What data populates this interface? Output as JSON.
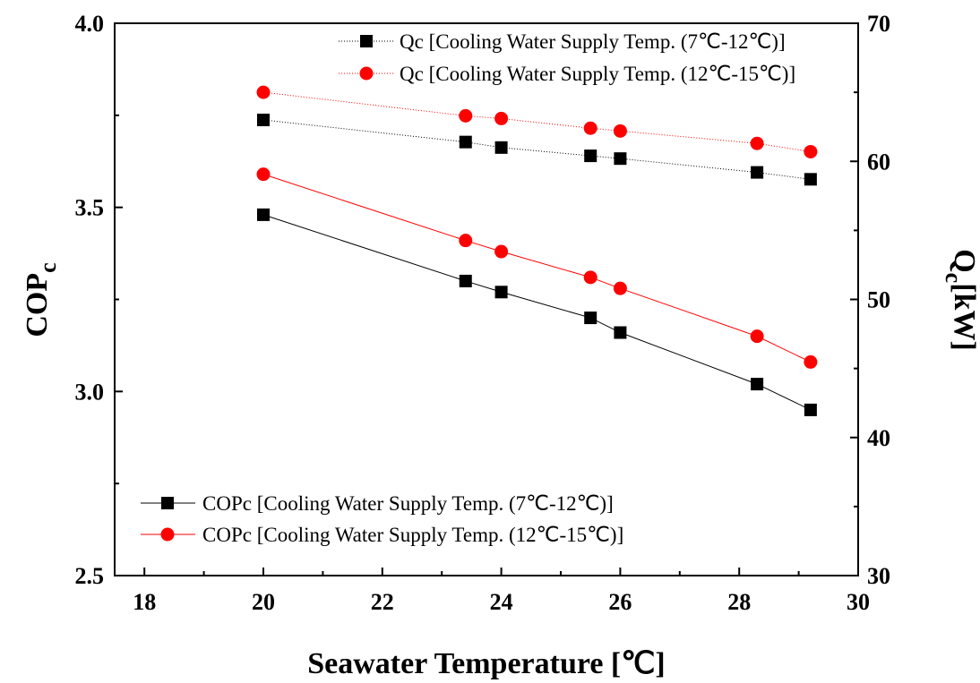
{
  "chart_data": {
    "type": "line",
    "title": "",
    "xlabel": "Seawater Temperature [℃]",
    "ylabel_left_main": "COP",
    "ylabel_left_sub": "c",
    "ylabel_right_main": "Q",
    "ylabel_right_sub": "c",
    "ylabel_right_unit": "[kW]",
    "xlim": [
      17.5,
      30
    ],
    "ylim_left": [
      2.5,
      4.0
    ],
    "ylim_right": [
      30,
      70
    ],
    "x_ticks": [
      "18",
      "20",
      "22",
      "24",
      "26",
      "28",
      "30"
    ],
    "y_left_ticks": [
      "2.5",
      "3.0",
      "3.5",
      "4.0"
    ],
    "y_right_ticks": [
      "30",
      "40",
      "50",
      "60",
      "70"
    ],
    "grid": false,
    "legend_top_right": [
      "Qc [Cooling Water Supply Temp. (7℃-12℃)]",
      "Qc [Cooling Water Supply Temp. (12℃-15℃)]"
    ],
    "legend_bottom_left": [
      "COPc [Cooling Water Supply Temp. (7℃-12℃)]",
      "COPc [Cooling Water Supply Temp. (12℃-15℃)]"
    ],
    "series": [
      {
        "axis": "right",
        "marker": "square",
        "color": "#000000",
        "line_style": "dotted",
        "x": [
          20,
          23.4,
          24,
          25.5,
          26,
          28.3,
          29.2
        ],
        "y": [
          63.0,
          61.4,
          61.0,
          60.4,
          60.2,
          59.2,
          58.7
        ]
      },
      {
        "axis": "right",
        "marker": "circle",
        "color": "#ff0000",
        "line_style": "dotted",
        "x": [
          20,
          23.4,
          24,
          25.5,
          26,
          28.3,
          29.2
        ],
        "y": [
          65.0,
          63.3,
          63.1,
          62.4,
          62.2,
          61.3,
          60.7
        ]
      },
      {
        "axis": "left",
        "marker": "square",
        "color": "#000000",
        "line_style": "solid",
        "x": [
          20,
          23.4,
          24,
          25.5,
          26,
          28.3,
          29.2
        ],
        "y": [
          3.48,
          3.3,
          3.27,
          3.2,
          3.16,
          3.02,
          2.95
        ]
      },
      {
        "axis": "left",
        "marker": "circle",
        "color": "#ff0000",
        "line_style": "solid",
        "x": [
          20,
          23.4,
          24,
          25.5,
          26,
          28.3,
          29.2
        ],
        "y": [
          3.59,
          3.41,
          3.38,
          3.31,
          3.28,
          3.15,
          3.08
        ]
      }
    ]
  }
}
